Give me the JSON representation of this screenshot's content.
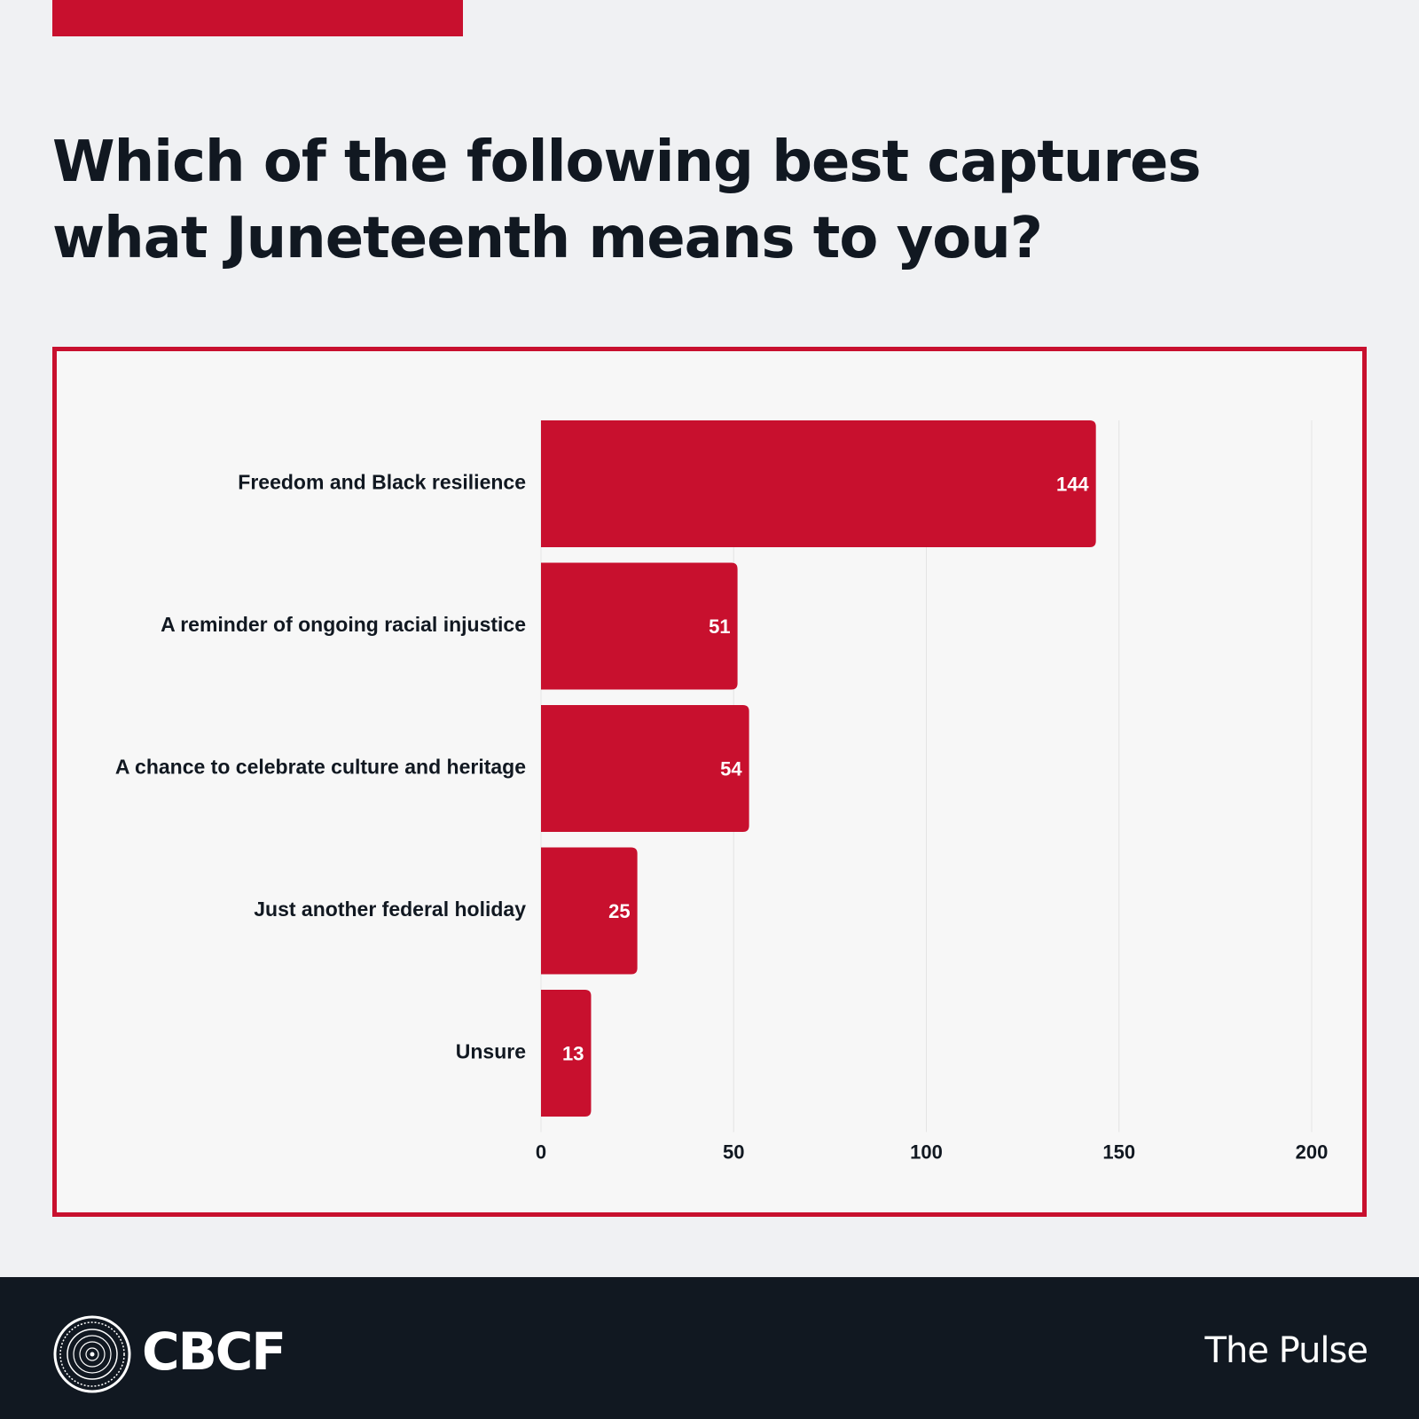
{
  "headline": "Which of the following best captures what Juneteenth means to you?",
  "chart_data": {
    "type": "bar",
    "orientation": "horizontal",
    "title": "",
    "xlabel": "",
    "ylabel": "",
    "categories": [
      "Freedom and Black resilience",
      "A reminder of ongoing racial injustice",
      "A chance to celebrate culture and heritage",
      "Just another federal holiday",
      "Unsure"
    ],
    "values": [
      144,
      51,
      54,
      25,
      13
    ],
    "xlim": [
      0,
      200
    ],
    "ticks": [
      0,
      50,
      100,
      150,
      200
    ],
    "tick_labels": [
      "0",
      "50",
      "100",
      "150",
      "200"
    ],
    "grid": "vertical",
    "data_labels": "inside-end",
    "bar_color": "#c8102e"
  },
  "footer": {
    "logo_icon": "cbcf-seal-icon",
    "brand": "CBCF",
    "series": "The Pulse"
  },
  "colors": {
    "accent": "#c8102e",
    "dark": "#111821",
    "background": "#f0f1f3",
    "chart_background": "#f7f7f7"
  }
}
